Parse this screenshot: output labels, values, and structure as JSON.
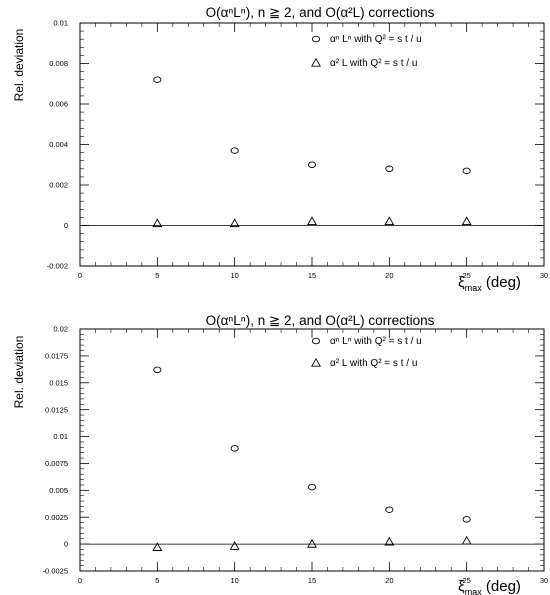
{
  "chart_data": [
    {
      "type": "scatter",
      "title": "O(αⁿLⁿ), n ≧ 2, and O(α²L) corrections",
      "xlabel": "ξₘₐₓ (deg)",
      "xlabel_main": "ξ",
      "xlabel_sub": "max",
      "xlabel_unit": " (deg)",
      "ylabel": "Rel. deviation",
      "xlim": [
        0,
        30
      ],
      "ylim": [
        -0.002,
        0.01
      ],
      "xticks": [
        0,
        5,
        10,
        15,
        20,
        25,
        30
      ],
      "yticks": [
        -0.002,
        0,
        0.002,
        0.004,
        0.006,
        0.008,
        0.01
      ],
      "ytick_labels": [
        "-0.002",
        "0",
        "0.002",
        "0.004",
        "0.006",
        "0.008",
        "0.01"
      ],
      "zero_line": true,
      "legend": "top-right",
      "series": [
        {
          "name": "αⁿ Lⁿ with Q² = s t / u",
          "marker": "circle",
          "x": [
            5,
            10,
            15,
            20,
            25
          ],
          "y": [
            0.0072,
            0.0037,
            0.003,
            0.0028,
            0.0027
          ]
        },
        {
          "name": "α² L with Q² = s t / u",
          "marker": "triangle",
          "x": [
            5,
            10,
            15,
            20,
            25
          ],
          "y": [
            0.0001,
            0.0001,
            0.0002,
            0.0002,
            0.0002
          ]
        }
      ]
    },
    {
      "type": "scatter",
      "title": "O(αⁿLⁿ), n ≧ 2, and O(α²L) corrections",
      "xlabel": "ξₘₐₓ (deg)",
      "xlabel_main": "ξ",
      "xlabel_sub": "max",
      "xlabel_unit": " (deg)",
      "ylabel": "Rel. deviation",
      "xlim": [
        0,
        30
      ],
      "ylim": [
        -0.0025,
        0.02
      ],
      "xticks": [
        0,
        5,
        10,
        15,
        20,
        25,
        30
      ],
      "yticks": [
        -0.0025,
        0,
        0.0025,
        0.005,
        0.0075,
        0.01,
        0.0125,
        0.015,
        0.0175,
        0.02
      ],
      "ytick_labels": [
        "-0.0025",
        "0",
        "0.0025",
        "0.005",
        "0.0075",
        "0.01",
        "0.0125",
        "0.015",
        "0.0175",
        "0.02"
      ],
      "zero_line": true,
      "legend": "top-right",
      "series": [
        {
          "name": "αⁿ Lⁿ with Q² = s t / u",
          "marker": "circle",
          "x": [
            5,
            10,
            15,
            20,
            25
          ],
          "y": [
            0.0162,
            0.0089,
            0.0053,
            0.0032,
            0.0023
          ]
        },
        {
          "name": "α² L with Q² = s t / u",
          "marker": "triangle",
          "x": [
            5,
            10,
            15,
            20,
            25
          ],
          "y": [
            -0.0003,
            -0.0002,
            0.0,
            0.0002,
            0.0003
          ]
        }
      ]
    }
  ]
}
